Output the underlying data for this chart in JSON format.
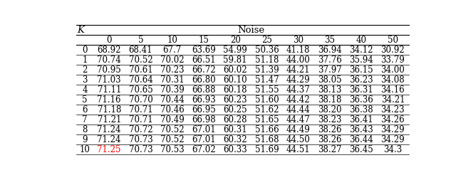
{
  "title": "Noise",
  "row_header": "K",
  "col_headers": [
    "0",
    "5",
    "10",
    "15",
    "20",
    "25",
    "30",
    "35",
    "40",
    "50"
  ],
  "row_labels": [
    "0",
    "1",
    "2",
    "3",
    "4",
    "5",
    "6",
    "7",
    "8",
    "9",
    "10"
  ],
  "table_data": [
    [
      "68.92",
      "68.41",
      "67.7",
      "63.69",
      "54.99",
      "50.36",
      "41.18",
      "36.94",
      "34.12",
      "30.92"
    ],
    [
      "70.74",
      "70.52",
      "70.02",
      "66.51",
      "59.81",
      "51.18",
      "44.00",
      "37.76",
      "35.94",
      "33.79"
    ],
    [
      "70.95",
      "70.61",
      "70.23",
      "66.72",
      "60.02",
      "51.39",
      "44.21",
      "37.97",
      "36.15",
      "34.00"
    ],
    [
      "71.03",
      "70.64",
      "70.31",
      "66.80",
      "60.10",
      "51.47",
      "44.29",
      "38.05",
      "36.23",
      "34.08"
    ],
    [
      "71.11",
      "70.65",
      "70.39",
      "66.88",
      "60.18",
      "51.55",
      "44.37",
      "38.13",
      "36.31",
      "34.16"
    ],
    [
      "71.16",
      "70.70",
      "70.44",
      "66.93",
      "60.23",
      "51.60",
      "44.42",
      "38.18",
      "36.36",
      "34.21"
    ],
    [
      "71.18",
      "70.71",
      "70.46",
      "66.95",
      "60.25",
      "51.62",
      "44.44",
      "38.20",
      "36.38",
      "34.23"
    ],
    [
      "71.21",
      "70.71",
      "70.49",
      "66.98",
      "60.28",
      "51.65",
      "44.47",
      "38.23",
      "36.41",
      "34.26"
    ],
    [
      "71.24",
      "70.72",
      "70.52",
      "67.01",
      "60.31",
      "51.66",
      "44.49",
      "38.26",
      "36.43",
      "34.29"
    ],
    [
      "71.24",
      "70.73",
      "70.52",
      "67.01",
      "60.32",
      "51.68",
      "44.50",
      "38.26",
      "36.44",
      "34.29"
    ],
    [
      "71.25",
      "70.73",
      "70.53",
      "67.02",
      "60.33",
      "51.69",
      "44.51",
      "38.27",
      "36.45",
      "34.3"
    ]
  ],
  "highlight_cell": [
    10,
    0
  ],
  "highlight_color": "#ff0000",
  "bg_color": "#ffffff",
  "line_color": "#000000",
  "font_size": 8.5,
  "header_font_size": 9.5
}
